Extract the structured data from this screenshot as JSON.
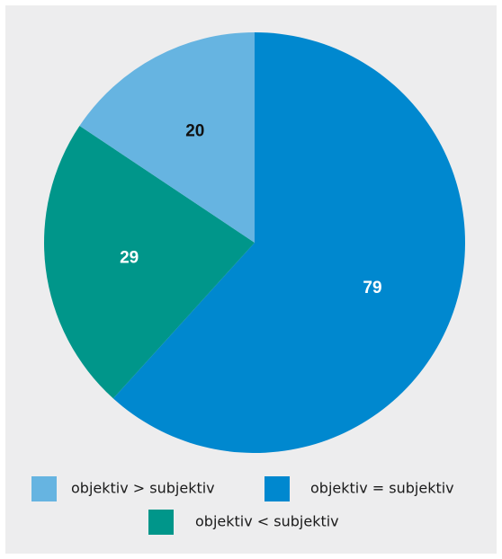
{
  "chart_data": {
    "type": "pie",
    "start_angle_deg": 90,
    "direction": "clockwise",
    "slices": [
      {
        "label": "objektiv = subjektiv",
        "value": 79,
        "color": "#0088cf",
        "label_color": "#ffffff"
      },
      {
        "label": "objektiv < subjektiv",
        "value": 29,
        "color": "#00968a",
        "label_color": "#ffffff"
      },
      {
        "label": "objektiv > subjektiv",
        "value": 20,
        "color": "#66b4e1",
        "label_color": "#111111"
      }
    ],
    "legend": {
      "placement": "bottom",
      "entries": [
        {
          "label": "objektiv > subjektiv",
          "color": "#66b4e1"
        },
        {
          "label": "objektiv = subjektiv",
          "color": "#0088cf"
        },
        {
          "label": "objektiv < subjektiv",
          "color": "#00968a"
        }
      ]
    }
  }
}
